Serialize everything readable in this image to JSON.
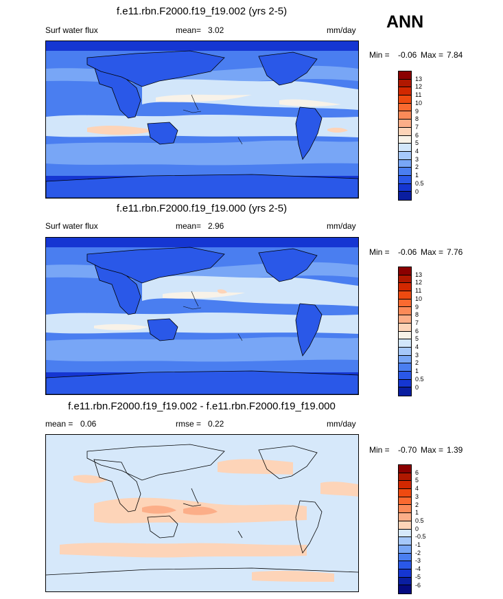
{
  "season": "ANN",
  "panels": [
    {
      "title": "f.e11.rbn.F2000.f19_f19.002 (yrs 2-5)",
      "left_label": "Surf water flux",
      "mean_label": "mean=",
      "mean_value": "3.02",
      "units": "mm/day",
      "min_label": "Min =",
      "min_value": "-0.06",
      "max_label": "Max =",
      "max_value": "7.84",
      "levels": [
        "13",
        "12",
        "11",
        "10",
        "9",
        "8",
        "7",
        "6",
        "5",
        "4",
        "3",
        "2",
        "1",
        "0.5",
        "0"
      ],
      "colors": [
        "#8b0000",
        "#b01800",
        "#d22800",
        "#ee4a10",
        "#fa6a30",
        "#fb8a58",
        "#fcae88",
        "#fdd4b8",
        "#f8f2e8",
        "#d2e6fa",
        "#a6c8fa",
        "#78a6f6",
        "#4a7ef0",
        "#2a58e8",
        "#1536d2",
        "#0a1ea0"
      ]
    },
    {
      "title": "f.e11.rbn.F2000.f19_f19.000 (yrs 2-5)",
      "left_label": "Surf water flux",
      "mean_label": "mean=",
      "mean_value": "2.96",
      "units": "mm/day",
      "min_label": "Min =",
      "min_value": "-0.06",
      "max_label": "Max =",
      "max_value": "7.76",
      "levels": [
        "13",
        "12",
        "11",
        "10",
        "9",
        "8",
        "7",
        "6",
        "5",
        "4",
        "3",
        "2",
        "1",
        "0.5",
        "0"
      ],
      "colors": [
        "#8b0000",
        "#b01800",
        "#d22800",
        "#ee4a10",
        "#fa6a30",
        "#fb8a58",
        "#fcae88",
        "#fdd4b8",
        "#f8f2e8",
        "#d2e6fa",
        "#a6c8fa",
        "#78a6f6",
        "#4a7ef0",
        "#2a58e8",
        "#1536d2",
        "#0a1ea0"
      ]
    },
    {
      "title": "f.e11.rbn.F2000.f19_f19.002 - f.e11.rbn.F2000.f19_f19.000",
      "left_label": "mean =",
      "mean_label": "rmse =",
      "left_value": "0.06",
      "mean_value": "0.22",
      "units": "mm/day",
      "min_label": "Min =",
      "min_value": "-0.70",
      "max_label": "Max =",
      "max_value": "1.39",
      "levels": [
        "6",
        "5",
        "4",
        "3",
        "2",
        "1",
        "0.5",
        "0",
        "-0.5",
        "-1",
        "-2",
        "-3",
        "-4",
        "-5",
        "-6"
      ],
      "colors": [
        "#8b0000",
        "#b01800",
        "#d22800",
        "#ee4a10",
        "#fa6a30",
        "#fb8a58",
        "#fcae88",
        "#fdd4b8",
        "#d6e8fa",
        "#a6c8fa",
        "#78a6f6",
        "#4a7ef0",
        "#2a58e8",
        "#1536d2",
        "#0a1ea0",
        "#050a80"
      ]
    }
  ]
}
